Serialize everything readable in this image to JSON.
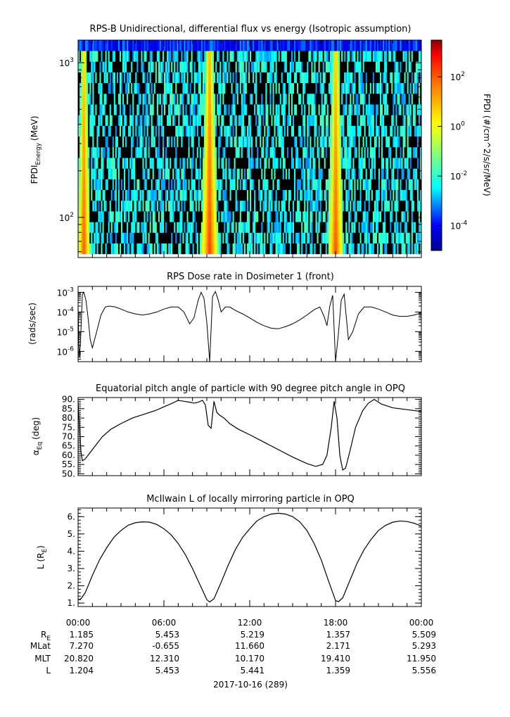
{
  "chart_data": [
    {
      "type": "heatmap",
      "title": "RPS-B  Unidirectional, differential flux vs energy (Isotropic assumption)",
      "ylabel_main": "FPDI",
      "ylabel_sub": "Energy",
      "ylabel_unit": "(MeV)",
      "yscale": "log",
      "ylim": [
        55,
        1400
      ],
      "yticks": [
        {
          "value": 100,
          "base": "10",
          "exp": "2"
        },
        {
          "value": 1000,
          "base": "10",
          "exp": "3"
        }
      ],
      "x_hours": [
        0,
        24
      ],
      "energy_bins": 20,
      "time_bins": 240,
      "colorbar": {
        "label": "FPDI (#/cm^2/s/sr/MeV)",
        "scale": "log",
        "range": [
          1e-05,
          3000
        ],
        "ticks": [
          {
            "base": "10",
            "exp": "2"
          },
          {
            "base": "10",
            "exp": "0"
          },
          {
            "base": "10",
            "exp": "-2"
          },
          {
            "base": "10",
            "exp": "-4"
          }
        ],
        "tick_values": [
          2,
          0,
          -2,
          -4
        ],
        "colors": [
          "#00008f",
          "#0000ff",
          "#00ffff",
          "#7fff7f",
          "#ffff00",
          "#ff7f00",
          "#ff0000",
          "#800000"
        ]
      },
      "belt_passes": [
        {
          "center_hour": 0.4,
          "width_hours": 0.45,
          "peak_log_flux": 2.2
        },
        {
          "center_hour": 9.2,
          "width_hours": 0.6,
          "peak_log_flux": 2.4
        },
        {
          "center_hour": 18.0,
          "width_hours": 0.55,
          "peak_log_flux": 2.2
        }
      ]
    },
    {
      "type": "line",
      "title": "RPS  Dose rate in Dosimeter 1 (front)",
      "ylabel": "(rads/sec)",
      "yscale": "log",
      "ylim": [
        3e-07,
        0.002
      ],
      "yticks": [
        {
          "value": 1e-06,
          "base": "10",
          "exp": "-6"
        },
        {
          "value": 1e-05,
          "base": "10",
          "exp": "-5"
        },
        {
          "value": 0.0001,
          "base": "10",
          "exp": "-4"
        },
        {
          "value": 0.001,
          "base": "10",
          "exp": "-3"
        }
      ],
      "x": [
        0.0,
        0.08,
        0.16,
        0.3,
        0.4,
        0.55,
        0.7,
        0.85,
        1.0,
        1.3,
        1.6,
        1.9,
        2.2,
        2.6,
        3.0,
        3.5,
        4.0,
        4.5,
        5.0,
        5.5,
        6.0,
        6.5,
        7.0,
        7.4,
        7.8,
        8.1,
        8.4,
        8.6,
        8.8,
        9.0,
        9.2,
        9.4,
        9.6,
        9.8,
        10.0,
        10.3,
        10.6,
        11.0,
        11.5,
        12.0,
        12.5,
        13.0,
        13.5,
        14.0,
        14.5,
        15.0,
        15.5,
        16.0,
        16.5,
        16.9,
        17.2,
        17.4,
        17.6,
        17.8,
        18.0,
        18.2,
        18.4,
        18.6,
        18.9,
        19.2,
        19.6,
        20.0,
        20.5,
        21.0,
        21.5,
        22.0,
        22.5,
        23.0,
        23.5,
        24.0
      ],
      "y": [
        0.0002,
        5e-07,
        2e-06,
        0.0008,
        0.001,
        0.0004,
        5e-05,
        4e-06,
        1.5e-06,
        1e-05,
        7e-05,
        0.00018,
        0.0002,
        0.00018,
        0.00014,
        0.0001,
        8e-05,
        7e-05,
        8e-05,
        0.0001,
        0.00014,
        0.00018,
        0.00018,
        0.0001,
        2.5e-05,
        5e-05,
        0.0004,
        0.001,
        0.0005,
        3e-05,
        3e-07,
        0.0006,
        0.0011,
        0.0004,
        0.0001,
        0.00018,
        0.00018,
        0.00012,
        8e-05,
        5e-05,
        3e-05,
        2e-05,
        1.5e-05,
        1.4e-05,
        1.8e-05,
        2.5e-05,
        4e-05,
        7e-05,
        0.00013,
        0.00018,
        6e-05,
        2e-05,
        0.0002,
        0.0007,
        3e-07,
        8e-06,
        0.0004,
        0.0008,
        4e-06,
        1e-05,
        8e-05,
        0.00018,
        0.00018,
        0.00014,
        0.0001,
        7e-05,
        6e-05,
        6e-05,
        7e-05,
        9e-05
      ]
    },
    {
      "type": "line",
      "title": "Equatorial pitch angle of particle with 90 degree pitch angle in OPQ",
      "ylabel_main": "α",
      "ylabel_sub": "Eq",
      "ylabel_unit": "(deg)",
      "ylim": [
        49,
        91
      ],
      "yticks": [
        50,
        55,
        60,
        65,
        70,
        75,
        80,
        85,
        90
      ],
      "ytick_labels": [
        "50.",
        "55.",
        "60.",
        "65.",
        "70.",
        "75.",
        "80.",
        "85.",
        "90."
      ],
      "x": [
        0.0,
        0.1,
        0.2,
        0.3,
        0.5,
        0.8,
        1.2,
        1.7,
        2.3,
        3.0,
        3.8,
        4.6,
        5.4,
        6.0,
        6.6,
        7.0,
        7.4,
        7.8,
        8.1,
        8.4,
        8.7,
        8.9,
        9.1,
        9.3,
        9.5,
        9.7,
        9.9,
        10.2,
        10.6,
        11.2,
        12.0,
        13.0,
        14.0,
        15.0,
        16.0,
        16.6,
        17.1,
        17.4,
        17.7,
        17.9,
        18.1,
        18.3,
        18.5,
        18.7,
        19.0,
        19.4,
        19.9,
        20.3,
        20.7,
        21.2,
        22.0,
        23.0,
        24.0
      ],
      "y": [
        88,
        75,
        62,
        57,
        58,
        61,
        65,
        70,
        74,
        77,
        80,
        82,
        84,
        86,
        88,
        89.5,
        89,
        88.5,
        88,
        88.5,
        89.5,
        87,
        76,
        74.5,
        89,
        83,
        81.5,
        80,
        77,
        74,
        71,
        67,
        63,
        59,
        55.5,
        54,
        55,
        60,
        75,
        89,
        80,
        60,
        52,
        53,
        62,
        75,
        84,
        88,
        90,
        87.5,
        85.5,
        84.5,
        83.5
      ]
    },
    {
      "type": "line",
      "title": "McIlwain L of locally mirroring particle in OPQ",
      "ylabel_main": "L (R",
      "ylabel_sub": "E",
      "ylabel_unit": ")",
      "ylim": [
        0.8,
        6.5
      ],
      "yticks": [
        1,
        2,
        3,
        4,
        5,
        6
      ],
      "ytick_labels": [
        "1.",
        "2.",
        "3.",
        "4.",
        "5.",
        "6."
      ],
      "x": [
        0.0,
        0.2,
        0.5,
        1.0,
        1.5,
        2.0,
        2.5,
        3.0,
        3.5,
        4.0,
        4.5,
        5.0,
        5.5,
        6.0,
        6.5,
        7.0,
        7.5,
        8.0,
        8.5,
        9.0,
        9.2,
        9.5,
        10.0,
        10.5,
        11.0,
        11.5,
        12.0,
        12.5,
        13.0,
        13.5,
        14.0,
        14.5,
        15.0,
        15.5,
        16.0,
        16.5,
        17.0,
        17.5,
        18.0,
        18.2,
        18.5,
        19.0,
        19.5,
        20.0,
        20.5,
        21.0,
        21.5,
        22.0,
        22.5,
        23.0,
        23.5,
        24.0
      ],
      "y": [
        1.19,
        1.25,
        1.6,
        2.6,
        3.5,
        4.2,
        4.8,
        5.2,
        5.5,
        5.65,
        5.7,
        5.68,
        5.55,
        5.3,
        4.95,
        4.45,
        3.8,
        3.0,
        2.1,
        1.2,
        1.06,
        1.25,
        2.2,
        3.2,
        4.1,
        4.8,
        5.3,
        5.75,
        6.0,
        6.15,
        6.2,
        6.15,
        6.0,
        5.7,
        5.2,
        4.45,
        3.5,
        2.3,
        1.15,
        1.08,
        1.3,
        2.3,
        3.3,
        4.1,
        4.7,
        5.2,
        5.5,
        5.68,
        5.75,
        5.72,
        5.62,
        5.45
      ]
    }
  ],
  "time_axis": {
    "tick_labels": [
      "00:00",
      "06:00",
      "12:00",
      "18:00",
      "00:00"
    ],
    "tick_hours": [
      0,
      6,
      12,
      18,
      24
    ],
    "date_label": "2017-10-16 (289)"
  },
  "ephemeris": [
    {
      "name_main": "R",
      "name_sub": "E",
      "values": [
        "1.185",
        "5.453",
        "5.219",
        "1.357",
        "5.509"
      ]
    },
    {
      "name_main": "MLat",
      "name_sub": "",
      "values": [
        "7.270",
        "-0.655",
        "11.660",
        "2.171",
        "5.293"
      ]
    },
    {
      "name_main": "MLT",
      "name_sub": "",
      "values": [
        "20.820",
        "12.310",
        "10.170",
        "19.410",
        "11.950"
      ]
    },
    {
      "name_main": "L",
      "name_sub": "",
      "values": [
        "1.204",
        "5.453",
        "5.441",
        "1.359",
        "5.556"
      ]
    }
  ]
}
